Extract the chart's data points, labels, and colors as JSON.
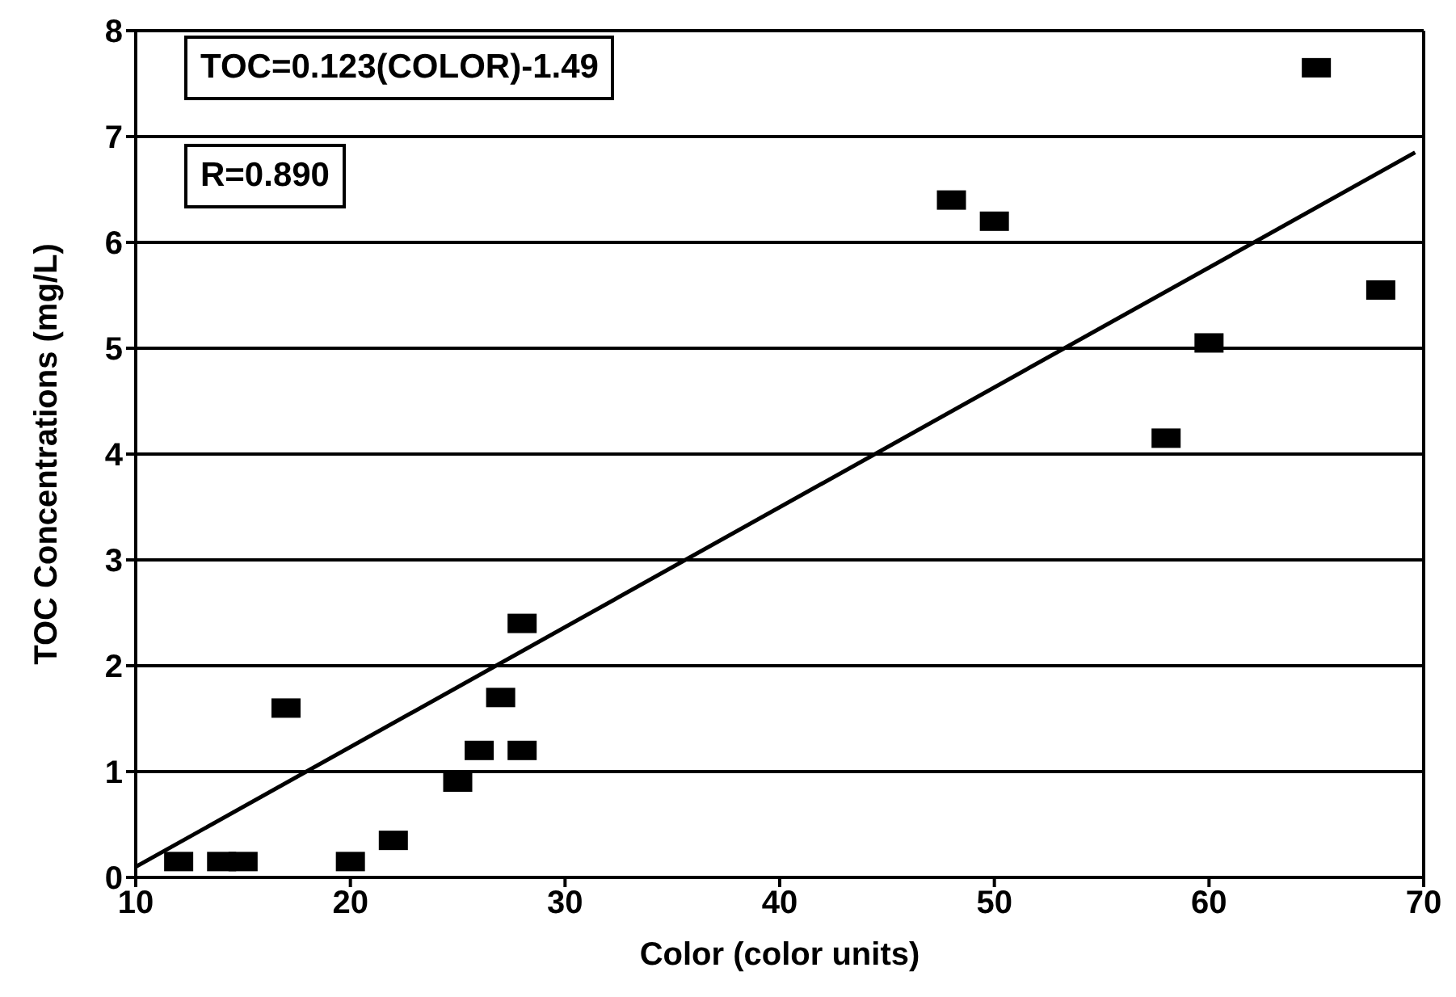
{
  "chart_data": {
    "type": "scatter",
    "xlabel": "Color (color units)",
    "ylabel": "TOC Concentrations (mg/L)",
    "annotations": [
      "TOC=0.123(COLOR)-1.49",
      "R=0.890"
    ],
    "xlim": [
      10,
      70
    ],
    "xticks": [
      10,
      20,
      30,
      40,
      50,
      60,
      70
    ],
    "ylim": [
      0,
      8
    ],
    "yticks": [
      0,
      1,
      2,
      3,
      4,
      5,
      6,
      7,
      8
    ],
    "grid": "y",
    "series": [
      {
        "marker": "square",
        "color": "#000000",
        "x": [
          12,
          14,
          15,
          17,
          20,
          22,
          25,
          26,
          27,
          28,
          28,
          48,
          50,
          58,
          60,
          65,
          68
        ],
        "values": [
          0.15,
          0.15,
          0.15,
          1.6,
          0.15,
          0.35,
          0.9,
          1.2,
          1.7,
          1.2,
          2.4,
          6.4,
          6.2,
          4.15,
          5.05,
          7.65,
          5.55
        ]
      },
      {
        "type": "line",
        "marker": "none",
        "color": "#000000",
        "x": [
          10,
          69.6
        ],
        "values": [
          0.1,
          6.85
        ]
      }
    ]
  }
}
